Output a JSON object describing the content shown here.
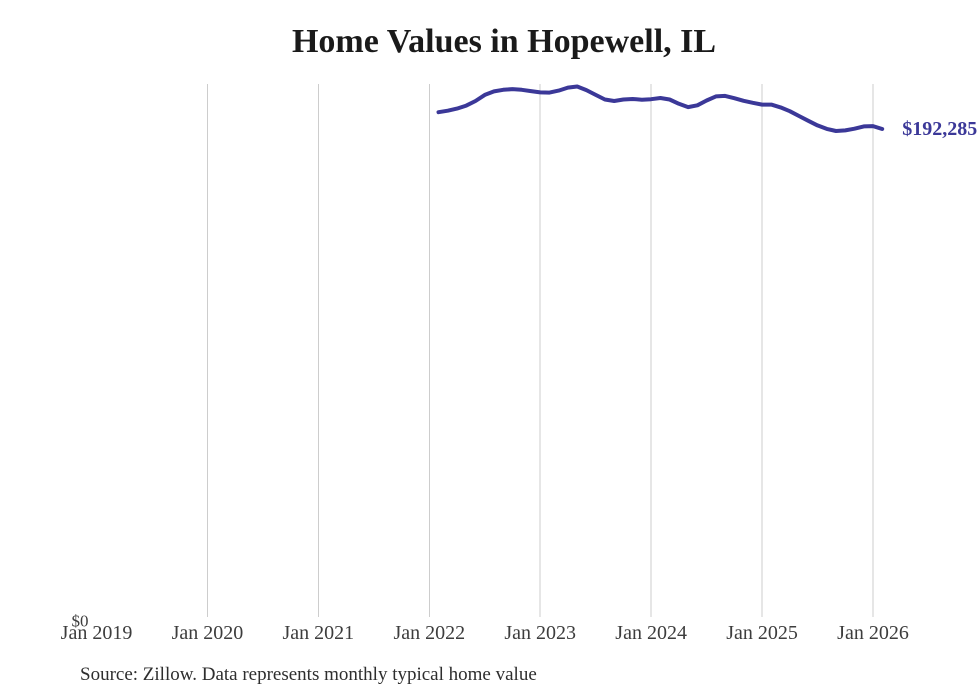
{
  "title": "Home Values in Hopewell, IL",
  "source_note": "Source: Zillow. Data represents monthly typical home value",
  "colors": {
    "background": "#ffffff",
    "line": "#3b3898",
    "end_label": "#3b3898",
    "grid": "#cdcdcd",
    "title": "#1a1a1a",
    "tick": "#3d3d3d",
    "note": "#2e2e2e"
  },
  "chart_data": {
    "type": "line",
    "title": "Home Values in Hopewell, IL",
    "xlabel": "",
    "ylabel": "",
    "ylim": [
      0,
      210000
    ],
    "grid": "vertical-yearly-gridlines",
    "legend": "none",
    "end_label": "$192,285",
    "end_value": 192285,
    "x_ticks": [
      {
        "label": "Jan 2019",
        "year": 2019,
        "grid": false
      },
      {
        "label": "Jan 2020",
        "year": 2020,
        "grid": true
      },
      {
        "label": "Jan 2021",
        "year": 2021,
        "grid": true
      },
      {
        "label": "Jan 2022",
        "year": 2022,
        "grid": true
      },
      {
        "label": "Jan 2023",
        "year": 2023,
        "grid": true
      },
      {
        "label": "Jan 2024",
        "year": 2024,
        "grid": true
      },
      {
        "label": "Jan 2025",
        "year": 2025,
        "grid": true
      },
      {
        "label": "Jan 2026",
        "year": 2026,
        "grid": true
      }
    ],
    "y_ticks": [
      {
        "label": "$0",
        "value": 0
      }
    ],
    "series": [
      {
        "name": "Monthly typical home value",
        "start_month": "2022-02",
        "frequency": "monthly",
        "values": [
          198900,
          199500,
          200300,
          201500,
          203300,
          205700,
          207100,
          207700,
          208000,
          207700,
          207200,
          206700,
          206600,
          207400,
          208600,
          209000,
          207600,
          205700,
          203900,
          203300,
          203900,
          204100,
          203800,
          204000,
          204500,
          203900,
          202200,
          200900,
          201600,
          203500,
          205100,
          205300,
          204400,
          203400,
          202600,
          201900,
          201900,
          200800,
          199300,
          197400,
          195500,
          193700,
          192300,
          191500,
          191700,
          192400,
          193300,
          193400,
          192285
        ]
      }
    ]
  }
}
